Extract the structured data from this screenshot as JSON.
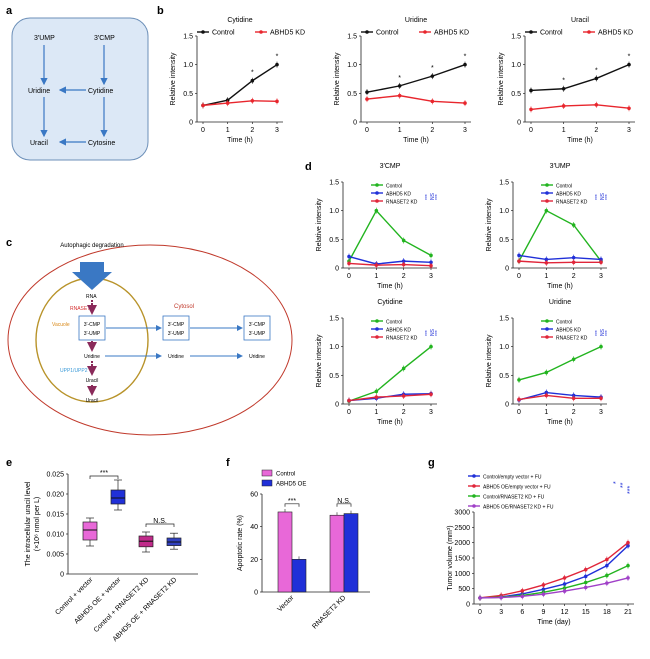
{
  "panel_letters": {
    "a": "a",
    "b": "b",
    "c": "c",
    "d": "d",
    "e": "e",
    "f": "f",
    "g": "g"
  },
  "colors": {
    "control": "#111111",
    "kd": "#e8262d",
    "green": "#22b41f",
    "blue": "#2030d8",
    "red": "#e0263a",
    "pink": "#e868d8",
    "purple": "#a040c8",
    "diag_blue": "#3a78c4",
    "diag_box_fill": "#dce8f6",
    "cell": "#c0392b",
    "vacuole": "#b8932a"
  },
  "panel_a": {
    "nodes": {
      "ump": "3′UMP",
      "cmp": "3′CMP",
      "uridine": "Uridine",
      "cytidine": "Cytidine",
      "uracil": "Uracil",
      "cytosine": "Cytosine"
    }
  },
  "panel_c": {
    "autophagic": "Autophagic degradation",
    "rna": "RNA",
    "rnaset2": "RNASET2",
    "vacuole": "Vacuole",
    "cytosol": "Cytosol",
    "inner_box": [
      "3′-CMP",
      "3′-UMP"
    ],
    "mid_box": [
      "3′-CMP",
      "3′-UMP"
    ],
    "right_box": [
      "3′-CMP",
      "3′-UMP"
    ],
    "uridine": "Uridine",
    "uridine2": "Uridine",
    "uridine3": "Uridine",
    "upp": "UPP1/UPP2",
    "uracil": "Uracil",
    "uracil2": "Uracil"
  },
  "chart_data": [
    {
      "id": "b1",
      "type": "line",
      "title": "Cytidine",
      "xlabel": "Time (h)",
      "ylabel": "Relative intensity",
      "x": [
        0,
        1,
        2,
        3
      ],
      "ylim": [
        0,
        1.5
      ],
      "yticks": [
        "0",
        "0.5",
        "1.0",
        "1.5"
      ],
      "series": [
        {
          "name": "Control",
          "values": [
            0.29,
            0.38,
            0.72,
            1.0
          ]
        },
        {
          "name": "ABHD5 KD",
          "values": [
            0.29,
            0.33,
            0.37,
            0.36
          ]
        }
      ],
      "legend": [
        "Control",
        "ABHD5 KD"
      ],
      "sig": [
        "*",
        "*"
      ]
    },
    {
      "id": "b2",
      "type": "line",
      "title": "Uridine",
      "xlabel": "Time (h)",
      "ylabel": "Relative intensity",
      "x": [
        0,
        1,
        2,
        3
      ],
      "ylim": [
        0,
        1.5
      ],
      "yticks": [
        "0",
        "0.5",
        "1.0",
        "1.5"
      ],
      "series": [
        {
          "name": "Control",
          "values": [
            0.52,
            0.63,
            0.8,
            1.0
          ]
        },
        {
          "name": "ABHD5 KD",
          "values": [
            0.4,
            0.46,
            0.36,
            0.33
          ]
        }
      ],
      "legend": [
        "Control",
        "ABHD5 KD"
      ],
      "sig": [
        "*",
        "*",
        "*"
      ]
    },
    {
      "id": "b3",
      "type": "line",
      "title": "Uracil",
      "xlabel": "Time (h)",
      "ylabel": "Relative intensity",
      "x": [
        0,
        1,
        2,
        3
      ],
      "ylim": [
        0,
        1.5
      ],
      "yticks": [
        "0",
        "0.5",
        "1.0",
        "1.5"
      ],
      "series": [
        {
          "name": "Control",
          "values": [
            0.55,
            0.58,
            0.76,
            1.0
          ]
        },
        {
          "name": "ABHD5 KD",
          "values": [
            0.22,
            0.28,
            0.3,
            0.24
          ]
        }
      ],
      "legend": [
        "Control",
        "ABHD5 KD"
      ],
      "sig": [
        "*",
        "*",
        "*"
      ]
    },
    {
      "id": "d1",
      "type": "line",
      "title": "3′CMP",
      "xlabel": "Time (h)",
      "ylabel": "Relative intensity",
      "x": [
        0,
        1,
        2,
        3
      ],
      "ylim": [
        0,
        1.5
      ],
      "yticks": [
        "0",
        "0.5",
        "1.0",
        "1.5"
      ],
      "series": [
        {
          "name": "Control",
          "values": [
            0.12,
            1.0,
            0.48,
            0.22
          ]
        },
        {
          "name": "ABHD5 KD",
          "values": [
            0.2,
            0.07,
            0.12,
            0.1
          ]
        },
        {
          "name": "RNASET2 KD",
          "values": [
            0.08,
            0.05,
            0.06,
            0.04
          ]
        }
      ],
      "legend": [
        "Control",
        "ABHD5 KD",
        "RNASET2 KD"
      ],
      "sig": [
        "***",
        "NS",
        "***"
      ]
    },
    {
      "id": "d2",
      "type": "line",
      "title": "3′UMP",
      "xlabel": "Time (h)",
      "ylabel": "Relative intensity",
      "x": [
        0,
        1,
        2,
        3
      ],
      "ylim": [
        0,
        1.5
      ],
      "yticks": [
        "0",
        "0.5",
        "1.0",
        "1.5"
      ],
      "series": [
        {
          "name": "Control",
          "values": [
            0.12,
            1.0,
            0.75,
            0.12
          ]
        },
        {
          "name": "ABHD5 KD",
          "values": [
            0.22,
            0.15,
            0.18,
            0.15
          ]
        },
        {
          "name": "RNASET2 KD",
          "values": [
            0.12,
            0.09,
            0.1,
            0.1
          ]
        }
      ],
      "legend": [
        "Control",
        "ABHD5 KD",
        "RNASET2 KD"
      ],
      "sig": [
        "***",
        "NS",
        "***"
      ]
    },
    {
      "id": "d3",
      "type": "line",
      "title": "Cytidine",
      "xlabel": "Time (h)",
      "ylabel": "Relative intensity",
      "x": [
        0,
        1,
        2,
        3
      ],
      "ylim": [
        0,
        1.5
      ],
      "yticks": [
        "0",
        "0.5",
        "1.0",
        "1.5"
      ],
      "series": [
        {
          "name": "Control",
          "values": [
            0.05,
            0.22,
            0.62,
            1.0
          ]
        },
        {
          "name": "ABHD5 KD",
          "values": [
            0.06,
            0.1,
            0.17,
            0.18
          ]
        },
        {
          "name": "RNASET2 KD",
          "values": [
            0.06,
            0.12,
            0.14,
            0.17
          ]
        }
      ],
      "legend": [
        "Control",
        "ABHD5 KD",
        "RNASET2 KD"
      ],
      "sig": [
        "***",
        "NS",
        "***"
      ]
    },
    {
      "id": "d4",
      "type": "line",
      "title": "Uridine",
      "xlabel": "Time (h)",
      "ylabel": "Relative intensity",
      "x": [
        0,
        1,
        2,
        3
      ],
      "ylim": [
        0,
        1.5
      ],
      "yticks": [
        "0",
        "0.5",
        "1.0",
        "1.5"
      ],
      "series": [
        {
          "name": "Control",
          "values": [
            0.42,
            0.55,
            0.78,
            1.0
          ]
        },
        {
          "name": "ABHD5 KD",
          "values": [
            0.07,
            0.2,
            0.15,
            0.12
          ]
        },
        {
          "name": "RNASET2 KD",
          "values": [
            0.08,
            0.15,
            0.1,
            0.1
          ]
        }
      ],
      "legend": [
        "Control",
        "ABHD5 KD",
        "RNASET2 KD"
      ],
      "sig": [
        "***",
        "NS",
        "***"
      ]
    },
    {
      "id": "e",
      "type": "box",
      "ylabel": "The intracellular uracil level",
      "ylabel2": "(×10⁶ nmol per L)",
      "ylim": [
        0,
        0.025
      ],
      "yticks": [
        "0",
        "0.005",
        "0.010",
        "0.015",
        "0.020",
        "0.025"
      ],
      "categories": [
        "Control + vector",
        "ABHD5 OE + vector",
        "Control + RNASET2 KD",
        "ABHD5 OE + RNASET2 KD"
      ],
      "boxes": [
        {
          "min": 0.007,
          "q1": 0.0085,
          "median": 0.011,
          "q3": 0.013,
          "max": 0.014
        },
        {
          "min": 0.016,
          "q1": 0.0175,
          "median": 0.019,
          "q3": 0.021,
          "max": 0.0235
        },
        {
          "min": 0.0055,
          "q1": 0.0068,
          "median": 0.0082,
          "q3": 0.0095,
          "max": 0.0105
        },
        {
          "min": 0.0062,
          "q1": 0.0071,
          "median": 0.008,
          "q3": 0.009,
          "max": 0.0102
        }
      ],
      "sig": [
        "***",
        "N.S."
      ]
    },
    {
      "id": "f",
      "type": "bar",
      "ylabel": "Apoptotic rate (%)",
      "ylim": [
        0,
        60
      ],
      "yticks": [
        "0",
        "20",
        "40",
        "60"
      ],
      "categories": [
        "Vector",
        "RNASET2 KD"
      ],
      "series": [
        {
          "name": "Control",
          "values": [
            49,
            47
          ]
        },
        {
          "name": "ABHD5 OE",
          "values": [
            20,
            48
          ]
        }
      ],
      "legend": [
        "Control",
        "ABHD5 OE"
      ],
      "sig": [
        "***",
        "N.S."
      ]
    },
    {
      "id": "g",
      "type": "line",
      "xlabel": "Time (day)",
      "ylabel": "Tumor volume (mm³)",
      "x": [
        0,
        3,
        6,
        9,
        12,
        15,
        18,
        21
      ],
      "ylim": [
        0,
        3000
      ],
      "yticks": [
        "0",
        "500",
        "1000",
        "1500",
        "2000",
        "2500",
        "3000"
      ],
      "xticks": [
        "0",
        "3",
        "6",
        "9",
        "12",
        "15",
        "18",
        "21"
      ],
      "series": [
        {
          "name": "Control/empty vector + FU",
          "values": [
            200,
            230,
            330,
            480,
            650,
            900,
            1250,
            1900
          ]
        },
        {
          "name": "ABHD5 OE/empty vector + FU",
          "values": [
            200,
            280,
            430,
            620,
            850,
            1120,
            1450,
            2000
          ]
        },
        {
          "name": "Control/RNASET2 KD + FU",
          "values": [
            200,
            220,
            280,
            380,
            520,
            700,
            930,
            1250
          ]
        },
        {
          "name": "ABHD5 OE/RNASET2 KD + FU",
          "values": [
            200,
            210,
            250,
            320,
            420,
            540,
            680,
            850
          ]
        }
      ],
      "legend": [
        "Control/empty vector + FU",
        "ABHD5 OE/empty vector + FU",
        "Control/RNASET2 KD + FU",
        "ABHD5 OE/RNASET2 KD + FU"
      ],
      "sig": [
        "*",
        "**",
        "***"
      ]
    }
  ]
}
